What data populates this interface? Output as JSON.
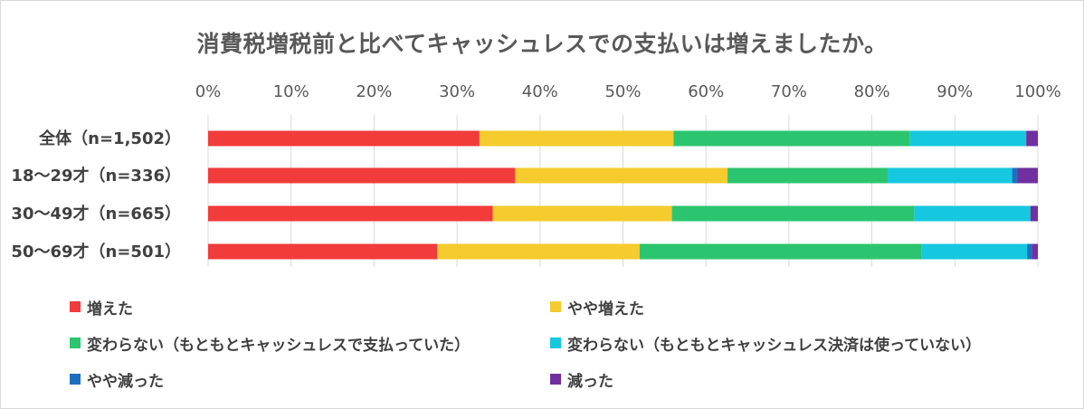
{
  "chart_data": {
    "type": "bar",
    "orientation": "horizontal",
    "stacked": "percent",
    "title": "消費税増税前と比べてキャッシュレスでの支払いは増えましたか。",
    "categories": [
      "全体（n=1,502）",
      "18～29才（n=336）",
      "30～49才（n=665）",
      "50～69才（n=501）"
    ],
    "xlim": [
      0,
      100
    ],
    "x_ticks": [
      "0%",
      "10%",
      "20%",
      "30%",
      "40%",
      "50%",
      "60%",
      "70%",
      "80%",
      "90%",
      "100%"
    ],
    "x_axis_position": "top",
    "grid": true,
    "legend_position": "bottom",
    "series": [
      {
        "name": "増えた",
        "color": "#f23b3b",
        "values": [
          32.7,
          37.0,
          34.3,
          27.6
        ]
      },
      {
        "name": "やや増えた",
        "color": "#f5cb2e",
        "values": [
          23.4,
          25.6,
          21.6,
          24.4
        ]
      },
      {
        "name": "変わらない（もともとキャッシュレスで支払っていた）",
        "color": "#2cc56f",
        "values": [
          28.5,
          19.3,
          29.2,
          34.0
        ]
      },
      {
        "name": "変わらない（もともとキャッシュレス決済は使っていない）",
        "color": "#16c7e0",
        "values": [
          14.0,
          15.0,
          14.0,
          12.7
        ]
      },
      {
        "name": "やや減った",
        "color": "#1f6fbf",
        "values": [
          0.0,
          0.6,
          0.0,
          0.6
        ]
      },
      {
        "name": "減った",
        "color": "#7030a0",
        "values": [
          1.4,
          2.5,
          0.9,
          0.7
        ]
      }
    ]
  }
}
